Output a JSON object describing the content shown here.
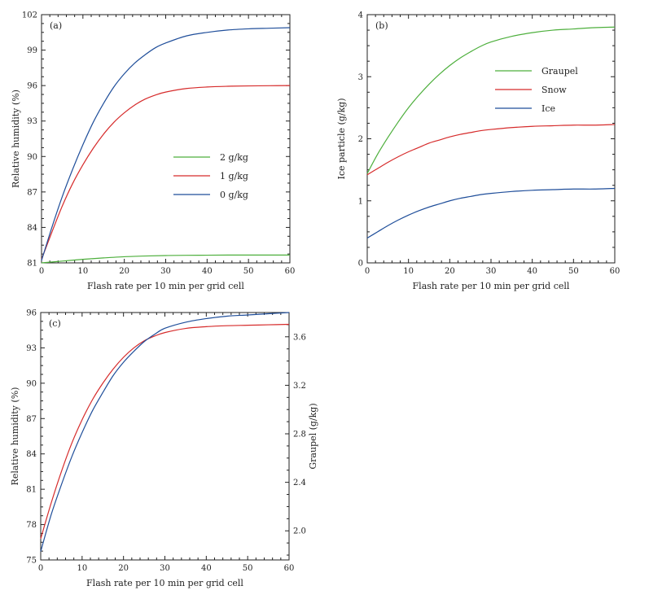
{
  "figure": {
    "panels": [
      "a",
      "b",
      "c"
    ]
  },
  "colors": {
    "green": "#4daf3c",
    "red": "#d62b2b",
    "blue": "#1f4e9a",
    "axis": "#222222"
  },
  "chart_data": [
    {
      "id": "a",
      "type": "line",
      "tag": "(a)",
      "xlabel": "Flash  rate  per  10  min  per  grid  cell",
      "ylabel": "Relative  humidity  (%)",
      "xlim": [
        0,
        60
      ],
      "ylim": [
        81,
        102
      ],
      "xticks": [
        0,
        10,
        20,
        30,
        40,
        50,
        60
      ],
      "yticks": [
        81,
        84,
        87,
        90,
        93,
        96,
        99,
        102
      ],
      "legend_position": "center-right",
      "series": [
        {
          "name": "2  g/kg",
          "color": "#4daf3c",
          "x": [
            0,
            5,
            10,
            15,
            20,
            25,
            30,
            35,
            40,
            45,
            50,
            55,
            60
          ],
          "y": [
            81.0,
            81.15,
            81.3,
            81.42,
            81.52,
            81.58,
            81.62,
            81.64,
            81.65,
            81.66,
            81.66,
            81.66,
            81.66
          ]
        },
        {
          "name": "1  g/kg",
          "color": "#d62b2b",
          "x": [
            0,
            2.5,
            5,
            7.5,
            10,
            12.5,
            15,
            17.5,
            20,
            22.5,
            25,
            27.5,
            30,
            35,
            40,
            45,
            50,
            55,
            60
          ],
          "y": [
            81.3,
            83.6,
            85.8,
            87.7,
            89.3,
            90.7,
            91.9,
            92.9,
            93.7,
            94.35,
            94.85,
            95.2,
            95.45,
            95.75,
            95.88,
            95.94,
            95.97,
            95.99,
            96.0
          ]
        },
        {
          "name": "0  g/kg",
          "color": "#1f4e9a",
          "x": [
            0,
            2.5,
            5,
            7.5,
            10,
            12.5,
            15,
            17.5,
            20,
            22.5,
            25,
            27.5,
            30,
            35,
            40,
            45,
            50,
            55,
            60
          ],
          "y": [
            81.2,
            84.0,
            86.6,
            88.9,
            91.0,
            92.9,
            94.5,
            95.9,
            97.0,
            97.9,
            98.6,
            99.2,
            99.6,
            100.2,
            100.5,
            100.7,
            100.8,
            100.85,
            100.9
          ]
        }
      ]
    },
    {
      "id": "b",
      "type": "line",
      "tag": "(b)",
      "xlabel": "Flash  rate  per  10  min  per  grid  cell",
      "ylabel": "Ice  particle  (g/kg)",
      "xlim": [
        0,
        60
      ],
      "ylim": [
        0,
        4
      ],
      "xticks": [
        0,
        10,
        20,
        30,
        40,
        50,
        60
      ],
      "yticks": [
        0,
        1,
        2,
        3,
        4
      ],
      "legend_position": "top-right",
      "series": [
        {
          "name": "Graupel",
          "color": "#4daf3c",
          "x": [
            0,
            2.5,
            5,
            7.5,
            10,
            12.5,
            15,
            17.5,
            20,
            22.5,
            25,
            27.5,
            30,
            35,
            40,
            45,
            50,
            55,
            60
          ],
          "y": [
            1.44,
            1.75,
            2.02,
            2.27,
            2.5,
            2.7,
            2.88,
            3.04,
            3.18,
            3.3,
            3.4,
            3.49,
            3.56,
            3.65,
            3.71,
            3.75,
            3.77,
            3.79,
            3.8
          ]
        },
        {
          "name": "Snow",
          "color": "#d62b2b",
          "x": [
            0,
            2.5,
            5,
            7.5,
            10,
            12.5,
            15,
            17.5,
            20,
            22.5,
            25,
            27.5,
            30,
            35,
            40,
            45,
            50,
            55,
            60
          ],
          "y": [
            1.42,
            1.52,
            1.62,
            1.71,
            1.79,
            1.86,
            1.93,
            1.98,
            2.03,
            2.07,
            2.1,
            2.13,
            2.15,
            2.18,
            2.2,
            2.21,
            2.22,
            2.22,
            2.23
          ]
        },
        {
          "name": "Ice",
          "color": "#1f4e9a",
          "x": [
            0,
            2.5,
            5,
            7.5,
            10,
            12.5,
            15,
            17.5,
            20,
            22.5,
            25,
            27.5,
            30,
            35,
            40,
            45,
            50,
            55,
            60
          ],
          "y": [
            0.4,
            0.5,
            0.6,
            0.69,
            0.77,
            0.84,
            0.9,
            0.95,
            1.0,
            1.04,
            1.07,
            1.1,
            1.12,
            1.15,
            1.17,
            1.18,
            1.19,
            1.19,
            1.2
          ]
        }
      ]
    },
    {
      "id": "c",
      "type": "line",
      "tag": "(c)",
      "xlabel": "Flash  rate  per  10  min  per  grid  cell",
      "ylabel": "Relative  humidity  (%)",
      "ylabel_right": "Graupel  (g/kg)",
      "xlim": [
        0,
        60
      ],
      "ylim": [
        75,
        96
      ],
      "ylim_right": [
        1.76,
        3.8
      ],
      "xticks": [
        0,
        10,
        20,
        30,
        40,
        50,
        60
      ],
      "yticks": [
        75,
        78,
        81,
        84,
        87,
        90,
        93,
        96
      ],
      "yticks_right": [
        2.0,
        2.4,
        2.8,
        3.2,
        3.6
      ],
      "yticks_right_labels": [
        "2.0",
        "2.4",
        "2.8",
        "3.2",
        "3.6"
      ],
      "series": [
        {
          "name": "Relative humidity",
          "axis": "left",
          "color": "#d62b2b",
          "x": [
            0,
            2.5,
            5,
            7.5,
            10,
            12.5,
            15,
            17.5,
            20,
            22.5,
            25,
            27.5,
            30,
            35,
            40,
            45,
            50,
            55,
            60
          ],
          "y": [
            76.8,
            79.8,
            82.5,
            84.9,
            86.9,
            88.6,
            90.0,
            91.2,
            92.2,
            93.0,
            93.6,
            94.0,
            94.3,
            94.65,
            94.8,
            94.88,
            94.92,
            94.96,
            95.0
          ]
        },
        {
          "name": "Graupel",
          "axis": "right",
          "color": "#1f4e9a",
          "x": [
            0,
            2.5,
            5,
            7.5,
            10,
            12.5,
            15,
            17.5,
            20,
            22.5,
            25,
            27.5,
            30,
            35,
            40,
            45,
            50,
            55,
            60
          ],
          "y": [
            1.83,
            2.13,
            2.38,
            2.61,
            2.81,
            2.99,
            3.14,
            3.28,
            3.39,
            3.48,
            3.56,
            3.62,
            3.67,
            3.72,
            3.75,
            3.77,
            3.78,
            3.79,
            3.8
          ]
        }
      ]
    }
  ]
}
